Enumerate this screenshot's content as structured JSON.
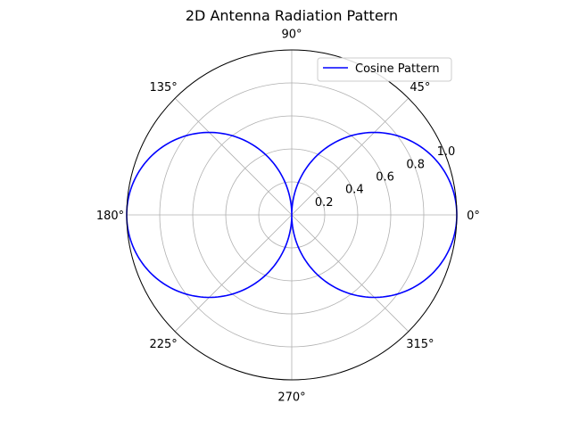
{
  "chart_data": {
    "type": "polar-line",
    "title": "2D Antenna Radiation Pattern",
    "angle_ticks_deg": [
      0,
      45,
      90,
      135,
      180,
      225,
      270,
      315
    ],
    "angle_tick_labels": [
      "0°",
      "45°",
      "90°",
      "135°",
      "180°",
      "225°",
      "270°",
      "315°"
    ],
    "radial_ticks": [
      0.2,
      0.4,
      0.6,
      0.8,
      1.0
    ],
    "radial_tick_labels": [
      "0.2",
      "0.4",
      "0.6",
      "0.8",
      "1.0"
    ],
    "rlim": [
      0,
      1.0
    ],
    "grid": true,
    "legend_position": "top-right",
    "series": [
      {
        "name": "Cosine Pattern",
        "color": "#0000ff",
        "function": "r = |cos(theta)|",
        "theta_deg": [
          0,
          10,
          20,
          30,
          40,
          50,
          60,
          70,
          80,
          90,
          100,
          110,
          120,
          130,
          140,
          150,
          160,
          170,
          180,
          190,
          200,
          210,
          220,
          230,
          240,
          250,
          260,
          270,
          280,
          290,
          300,
          310,
          320,
          330,
          340,
          350,
          360
        ],
        "r": [
          1.0,
          0.985,
          0.94,
          0.866,
          0.766,
          0.643,
          0.5,
          0.342,
          0.174,
          0.0,
          0.174,
          0.342,
          0.5,
          0.643,
          0.766,
          0.866,
          0.94,
          0.985,
          1.0,
          0.985,
          0.94,
          0.866,
          0.766,
          0.643,
          0.5,
          0.342,
          0.174,
          0.0,
          0.174,
          0.342,
          0.5,
          0.643,
          0.766,
          0.866,
          0.94,
          0.985,
          1.0
        ]
      }
    ]
  }
}
